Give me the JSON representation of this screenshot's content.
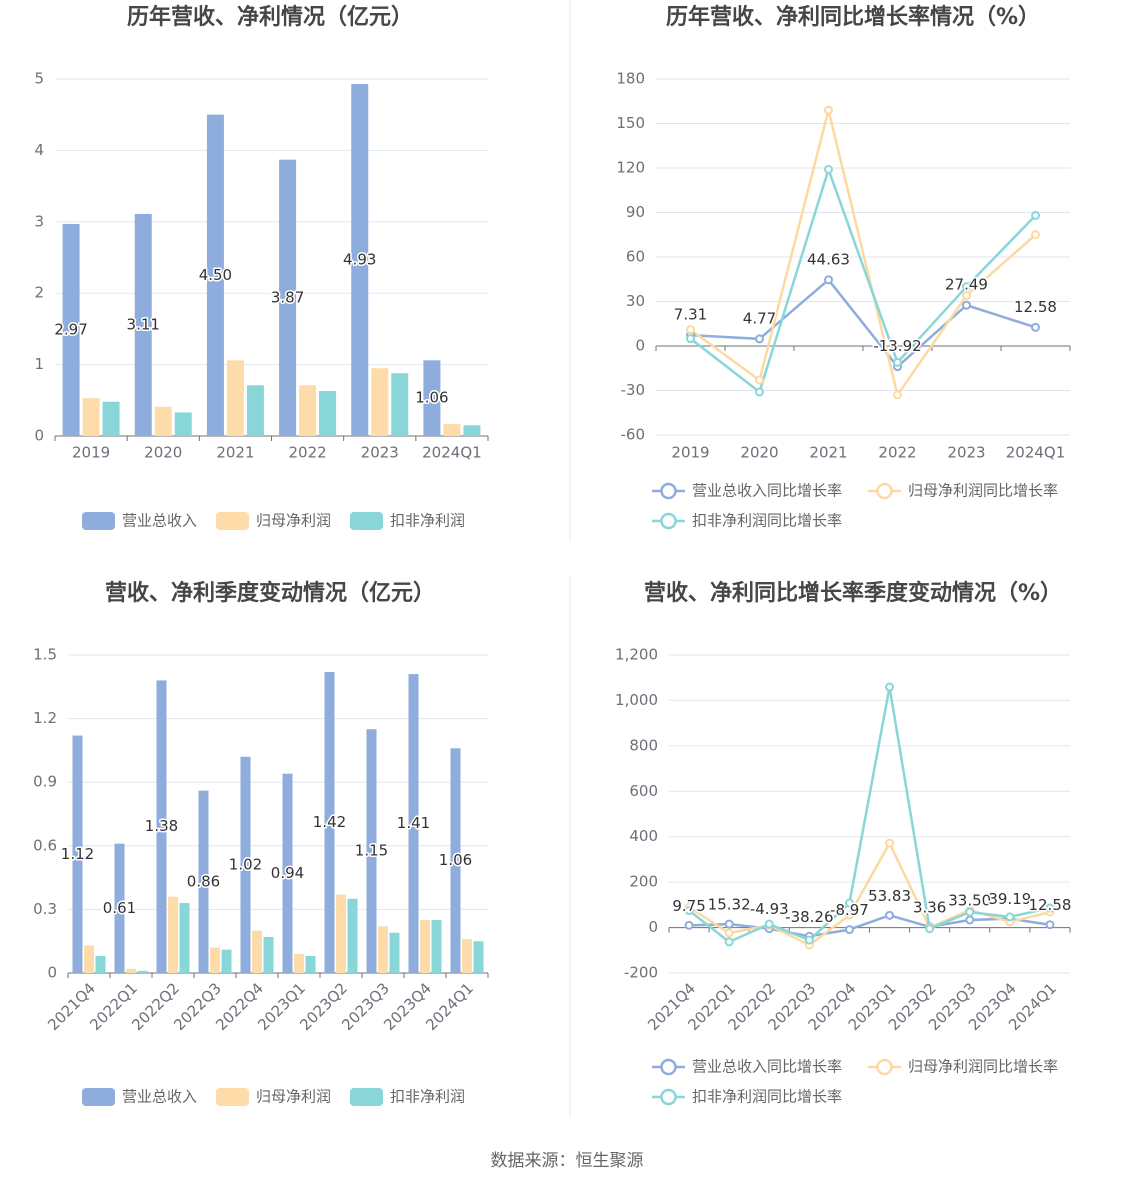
{
  "chart_data": [
    {
      "type": "bar",
      "title": "历年营收、净利情况（亿元）",
      "categories": [
        "2019",
        "2020",
        "2021",
        "2022",
        "2023",
        "2024Q1"
      ],
      "ylim": [
        0,
        5
      ],
      "yticks": [
        "0",
        "1",
        "2",
        "3",
        "4",
        "5"
      ],
      "grid": true,
      "legend_position": "bottom",
      "series": [
        {
          "name": "营业总收入",
          "color": "#8eacdc",
          "values": [
            2.97,
            3.11,
            4.5,
            3.87,
            4.93,
            1.06
          ],
          "labels": [
            "2.97",
            "3.11",
            "4.50",
            "3.87",
            "4.93",
            "1.06"
          ]
        },
        {
          "name": "归母净利润",
          "color": "#fedcaa",
          "values": [
            0.53,
            0.41,
            1.06,
            0.71,
            0.95,
            0.17
          ]
        },
        {
          "name": "扣非净利润",
          "color": "#88d6d8",
          "values": [
            0.48,
            0.33,
            0.71,
            0.63,
            0.88,
            0.15
          ]
        }
      ]
    },
    {
      "type": "line",
      "title": "历年营收、净利同比增长率情况（%）",
      "categories": [
        "2019",
        "2020",
        "2021",
        "2022",
        "2023",
        "2024Q1"
      ],
      "ylim": [
        -60,
        180
      ],
      "yticks": [
        "-60",
        "-30",
        "0",
        "30",
        "60",
        "90",
        "120",
        "150",
        "180"
      ],
      "grid": true,
      "legend_position": "bottom",
      "series": [
        {
          "name": "营业总收入同比增长率",
          "color": "#8eacdc",
          "values": [
            7.31,
            4.77,
            44.63,
            -13.92,
            27.49,
            12.58
          ],
          "labels": [
            "7.31",
            "4.77",
            "44.63",
            "-13.92",
            "27.49",
            "12.58"
          ]
        },
        {
          "name": "归母净利润同比增长率",
          "color": "#fdd9a0",
          "values": [
            11,
            -23,
            159,
            -33,
            34,
            75
          ]
        },
        {
          "name": "扣非净利润同比增长率",
          "color": "#88d6d8",
          "values": [
            5,
            -31,
            119,
            -11,
            40,
            88
          ]
        }
      ]
    },
    {
      "type": "bar",
      "title": "营收、净利季度变动情况（亿元）",
      "categories": [
        "2021Q4",
        "2022Q1",
        "2022Q2",
        "2022Q3",
        "2022Q4",
        "2023Q1",
        "2023Q2",
        "2023Q3",
        "2023Q4",
        "2024Q1"
      ],
      "ylim": [
        0,
        1.5
      ],
      "yticks": [
        "0",
        "0.3",
        "0.6",
        "0.9",
        "1.2",
        "1.5"
      ],
      "grid": true,
      "legend_position": "bottom",
      "series": [
        {
          "name": "营业总收入",
          "color": "#8eacdc",
          "values": [
            1.12,
            0.61,
            1.38,
            0.86,
            1.02,
            0.94,
            1.42,
            1.15,
            1.41,
            1.06
          ],
          "labels": [
            "1.12",
            "0.61",
            "1.38",
            "0.86",
            "1.02",
            "0.94",
            "1.42",
            "1.15",
            "1.41",
            "1.06"
          ]
        },
        {
          "name": "归母净利润",
          "color": "#fedcaa",
          "values": [
            0.13,
            0.02,
            0.36,
            0.12,
            0.2,
            0.09,
            0.37,
            0.22,
            0.25,
            0.16
          ]
        },
        {
          "name": "扣非净利润",
          "color": "#88d6d8",
          "values": [
            0.08,
            0.01,
            0.33,
            0.11,
            0.17,
            0.08,
            0.35,
            0.19,
            0.25,
            0.15
          ]
        }
      ]
    },
    {
      "type": "line",
      "title": "营收、净利同比增长率季度变动情况（%）",
      "categories": [
        "2021Q4",
        "2022Q1",
        "2022Q2",
        "2022Q3",
        "2022Q4",
        "2023Q1",
        "2023Q2",
        "2023Q3",
        "2023Q4",
        "2024Q1"
      ],
      "ylim": [
        -200,
        1200
      ],
      "yticks": [
        "-200",
        "0",
        "200",
        "400",
        "600",
        "800",
        "1,000",
        "1,200"
      ],
      "grid": true,
      "legend_position": "bottom",
      "series": [
        {
          "name": "营业总收入同比增长率",
          "color": "#8eacdc",
          "values": [
            9.75,
            15.32,
            -4.93,
            -38.26,
            -8.97,
            53.83,
            3.36,
            33.5,
            39.19,
            12.58
          ],
          "labels": [
            "9.75",
            "15.32",
            "-4.93",
            "-38.26",
            "-8.97",
            "53.83",
            "3.36",
            "33.50",
            "39.19",
            "12.58"
          ]
        },
        {
          "name": "归母净利润同比增长率",
          "color": "#fdd9a0",
          "values": [
            90,
            -24,
            10,
            -77,
            55,
            372,
            0,
            77,
            25,
            68
          ]
        },
        {
          "name": "扣非净利润同比增长率",
          "color": "#88d6d8",
          "values": [
            75,
            -63,
            15,
            -55,
            108,
            1059,
            -5,
            68,
            47,
            86
          ]
        }
      ]
    }
  ],
  "footer": {
    "source": "数据来源：恒生聚源"
  }
}
